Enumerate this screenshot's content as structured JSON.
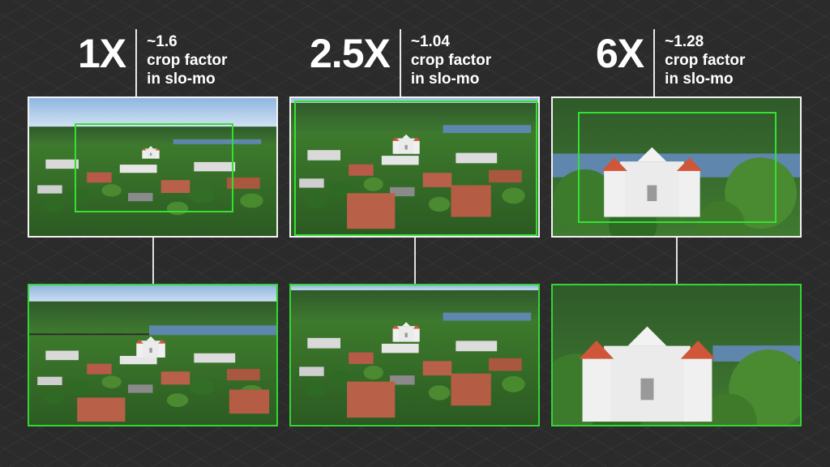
{
  "panels": [
    {
      "zoom": "1X",
      "crop_line1": "~1.6",
      "crop_line2": "crop factor",
      "crop_line3": "in slo-mo",
      "scene": "wide town with lake and church"
    },
    {
      "zoom": "2.5X",
      "crop_line1": "~1.04",
      "crop_line2": "crop factor",
      "crop_line3": "in slo-mo",
      "scene": "town with church and lake"
    },
    {
      "zoom": "6X",
      "crop_line1": "~1.28",
      "crop_line2": "crop factor",
      "crop_line3": "in slo-mo",
      "scene": "close-up white church with red roofs"
    }
  ],
  "colors": {
    "background": "#2b2b2b",
    "crop_frame": "#35e035",
    "text": "#ffffff"
  }
}
